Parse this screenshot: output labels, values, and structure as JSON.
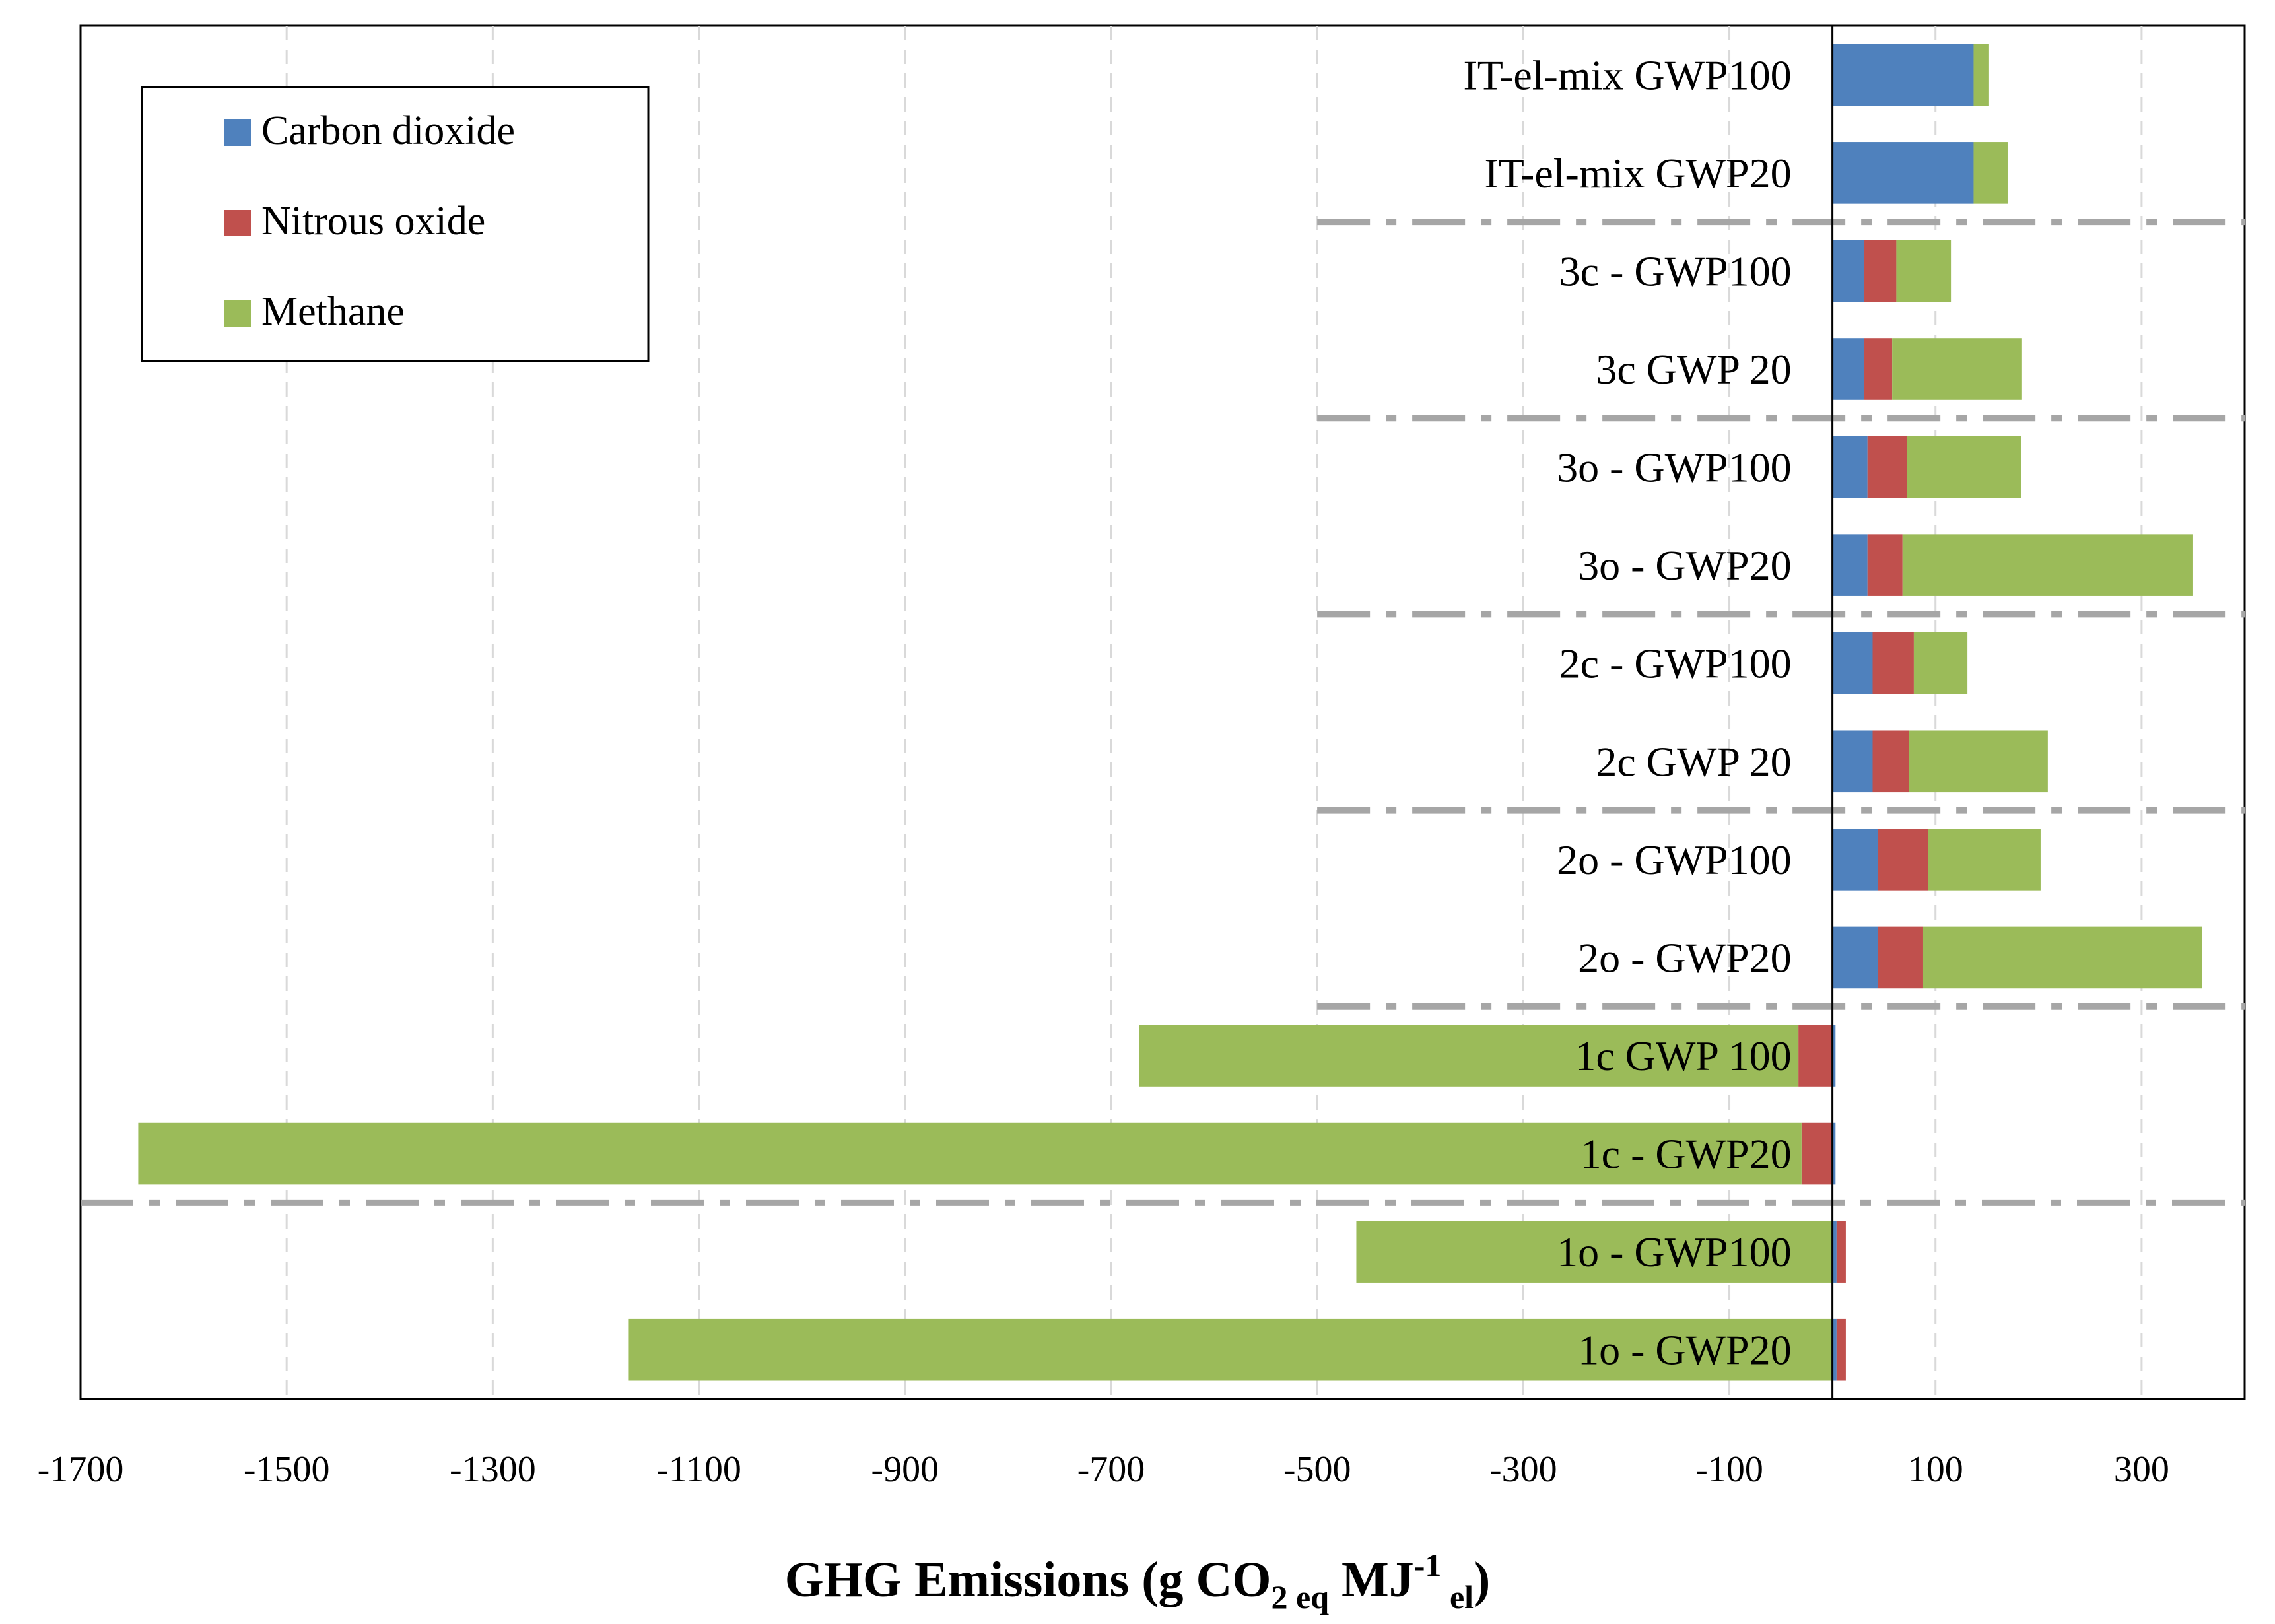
{
  "chart_data": {
    "type": "bar",
    "orientation": "horizontal",
    "stacked": true,
    "xlabel": {
      "main": "GHG Emissions (g CO",
      "sub1": "2 eq",
      "mid": " MJ",
      "sup": "-1",
      "sub2": " el",
      "end": ")"
    },
    "xlim": [
      -1700,
      400
    ],
    "xticks": [
      -1700,
      -1500,
      -1300,
      -1100,
      -900,
      -700,
      -500,
      -300,
      -100,
      100,
      300
    ],
    "grid": true,
    "legend_position": "top-left",
    "categories": [
      "IT-el-mix GWP100",
      "IT-el-mix GWP20",
      "3c - GWP100",
      "3c GWP 20",
      "3o - GWP100",
      "3o - GWP20",
      "2c - GWP100",
      "2c GWP 20",
      "2o - GWP100",
      "2o - GWP20",
      "1c GWP 100",
      "1c - GWP20",
      "1o - GWP100",
      "1o - GWP20"
    ],
    "series": [
      {
        "name": "Carbon dioxide",
        "color": "#4F81BD",
        "values": [
          137,
          137,
          31,
          31,
          34,
          34,
          39,
          39,
          44,
          44,
          3,
          3,
          4,
          4
        ]
      },
      {
        "name": "Nitrous oxide",
        "color": "#C0504D",
        "values": [
          0,
          0,
          31,
          27,
          38,
          34,
          40,
          35,
          49,
          44,
          -33,
          -30,
          9,
          9
        ]
      },
      {
        "name": "Methane",
        "color": "#9BBB59",
        "values": [
          15,
          33,
          53,
          126,
          111,
          282,
          52,
          135,
          109,
          271,
          -640,
          -1614,
          -462,
          -1168
        ]
      }
    ],
    "separators_after_category_index": [
      1,
      3,
      5,
      7,
      9,
      11
    ]
  }
}
